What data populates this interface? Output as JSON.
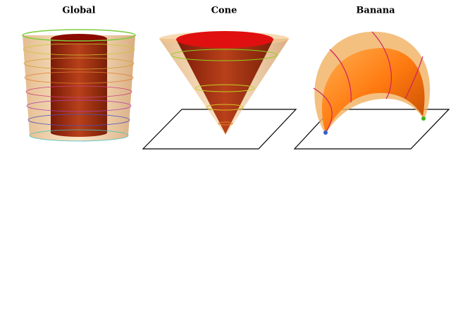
{
  "panels": [
    {
      "title": "Global"
    },
    {
      "title": "Cone"
    },
    {
      "title": "Banana"
    }
  ]
}
